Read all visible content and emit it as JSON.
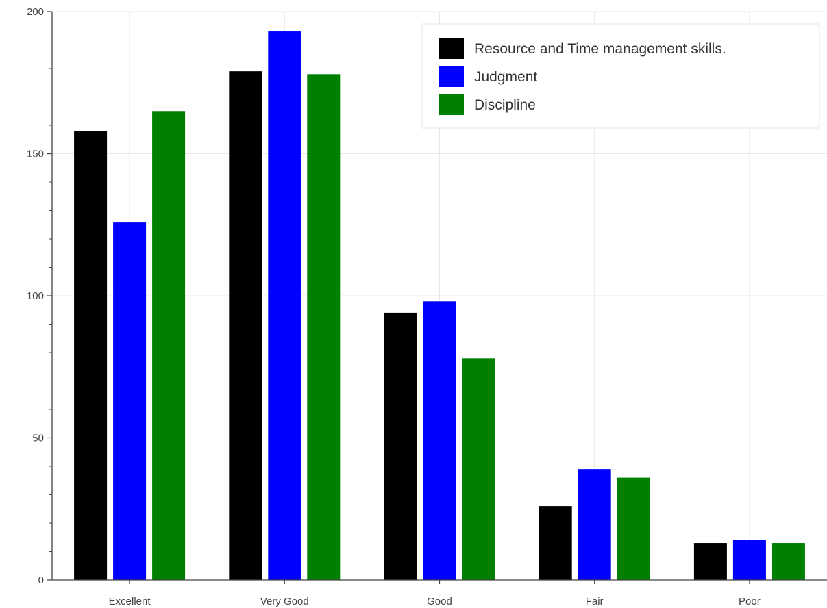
{
  "chart_data": {
    "type": "bar",
    "categories": [
      "Excellent",
      "Very Good",
      "Good",
      "Fair",
      "Poor"
    ],
    "series": [
      {
        "name": "Resource and Time management skills.",
        "color": "#000000",
        "values": [
          158,
          179,
          94,
          26,
          13
        ]
      },
      {
        "name": "Judgment",
        "color": "#0000ff",
        "values": [
          126,
          193,
          98,
          39,
          14
        ]
      },
      {
        "name": "Discipline",
        "color": "#008000",
        "values": [
          165,
          178,
          78,
          36,
          13
        ]
      }
    ],
    "title": "",
    "xlabel": "",
    "ylabel": "",
    "ylim": [
      0,
      200
    ],
    "yticks": [
      0,
      50,
      100,
      150,
      200
    ],
    "grid": true,
    "legend_position": "top-right"
  }
}
